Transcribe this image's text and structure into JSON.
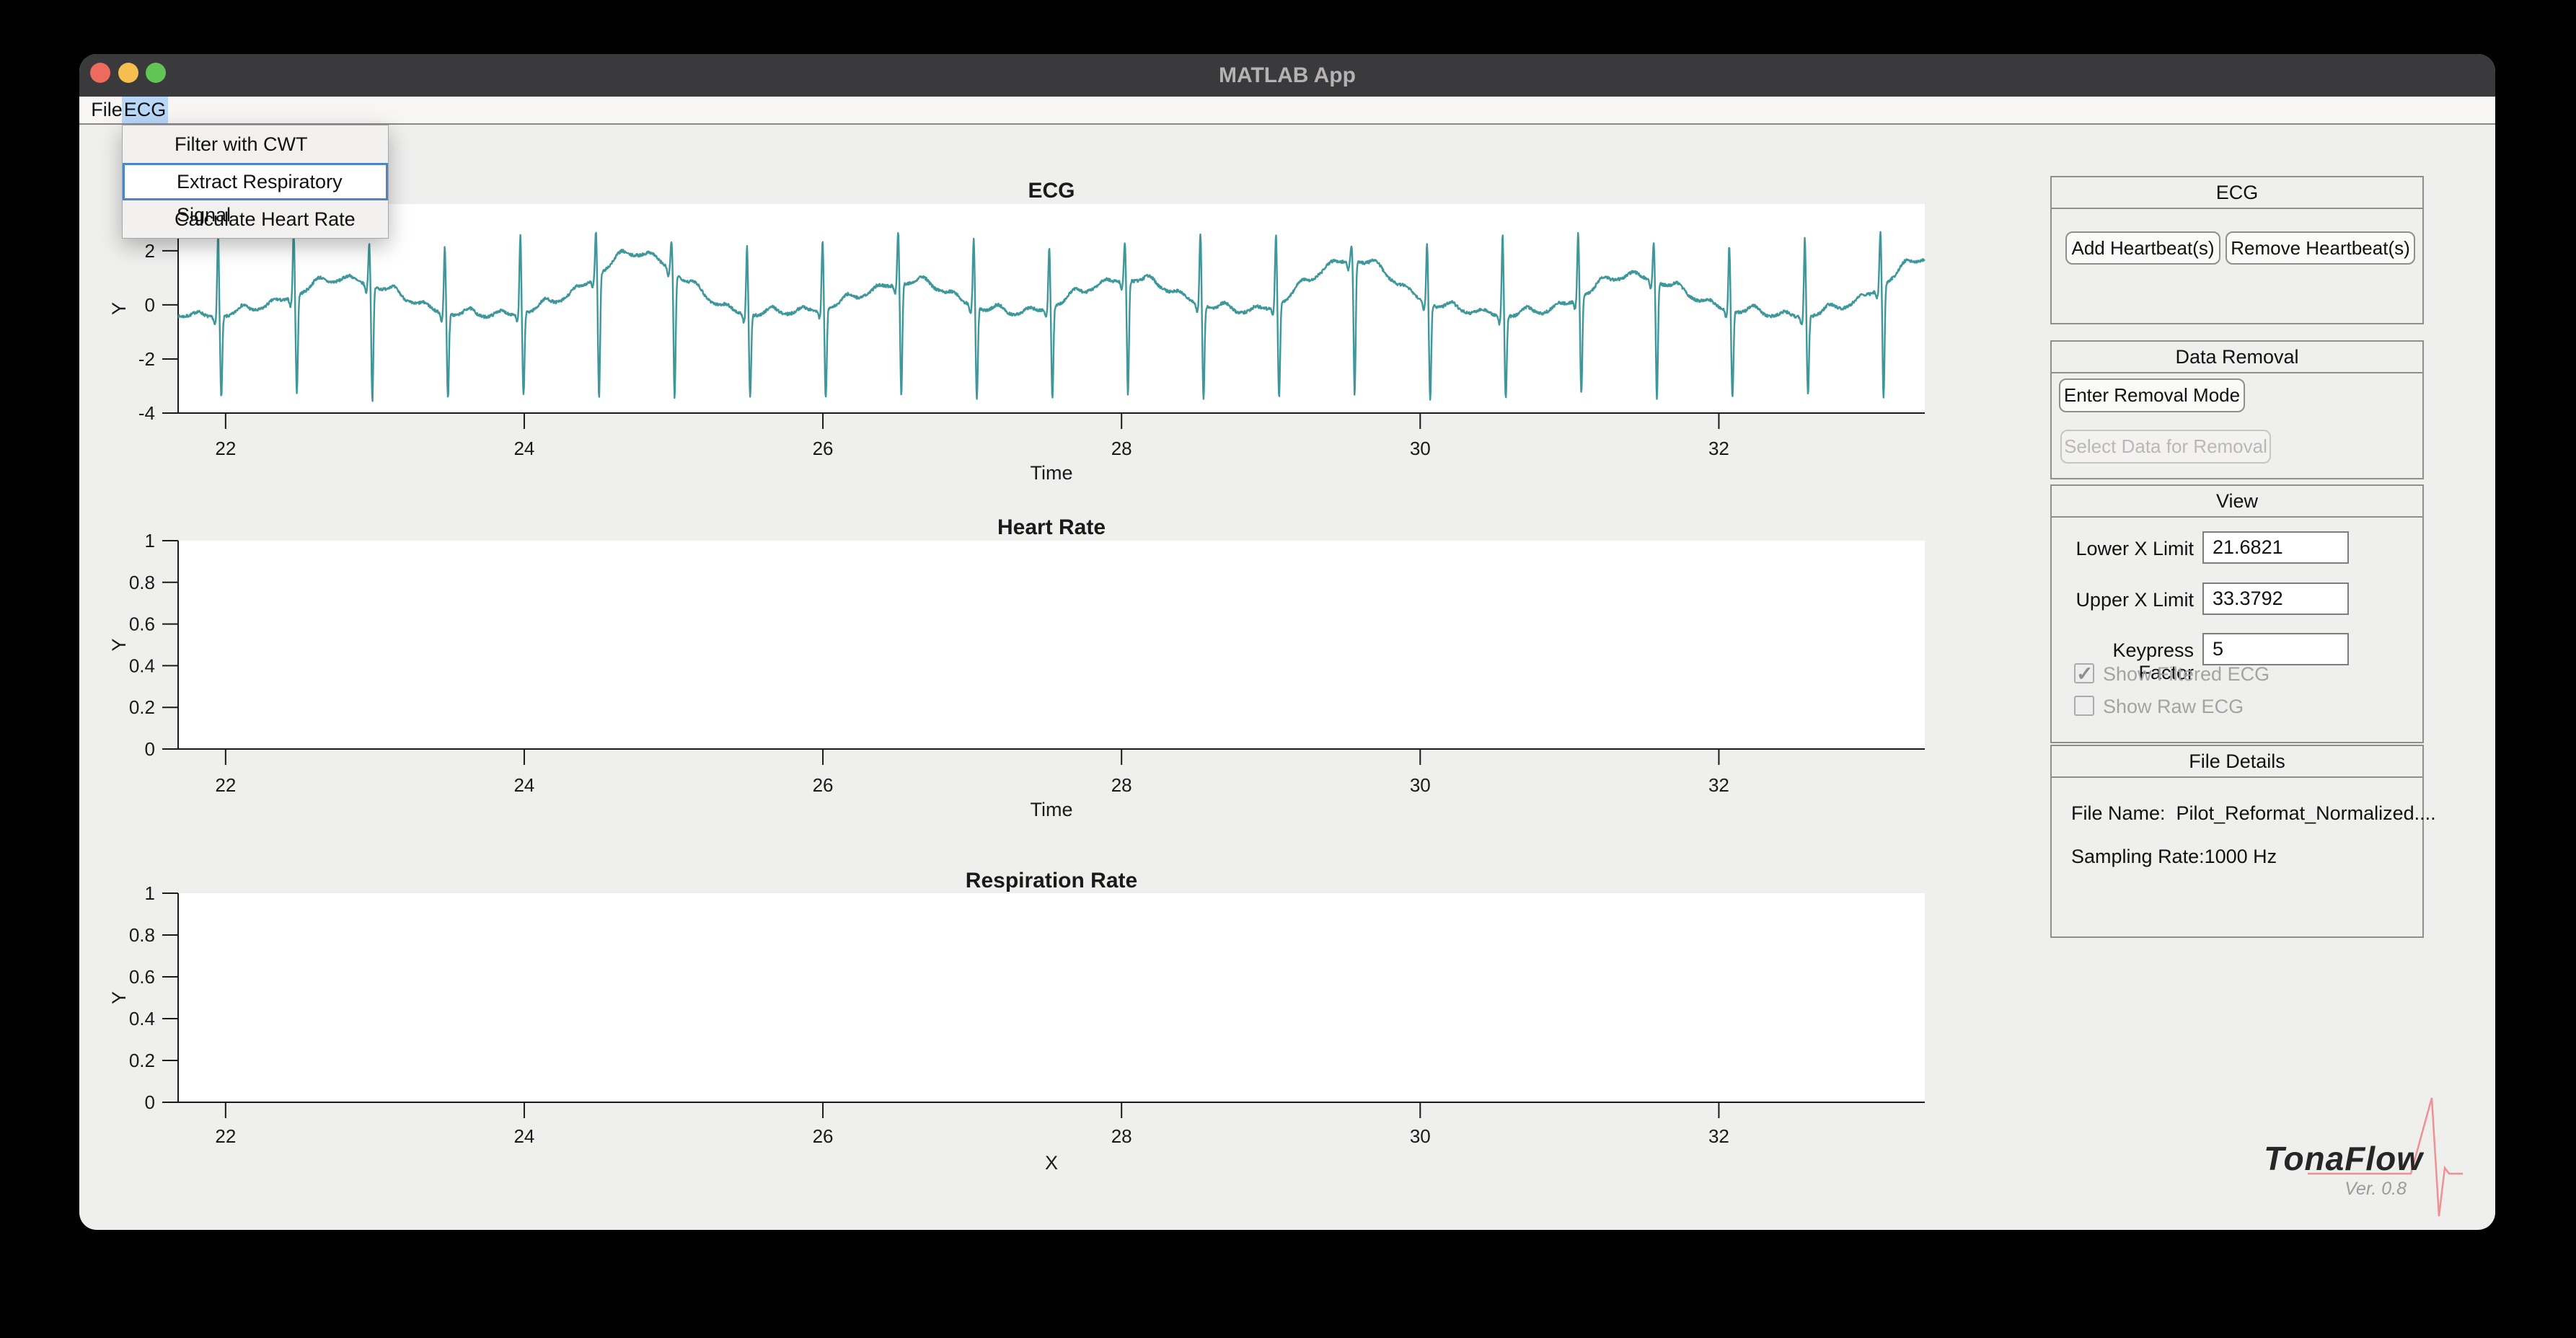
{
  "window": {
    "title": "MATLAB App"
  },
  "traffic_lights": {
    "close": "#ed6a5f",
    "minimize": "#f5bf4f",
    "zoom": "#61c454"
  },
  "menu_bar": {
    "file": "File",
    "ecg": "ECG",
    "highlight_color": "#b9d7f8"
  },
  "ecg_menu": {
    "items": [
      {
        "label": "Filter with CWT",
        "selected": false
      },
      {
        "label": "Extract Respiratory Signal",
        "selected": true
      },
      {
        "label": "Calculate Heart Rate",
        "selected": false
      }
    ]
  },
  "panels": {
    "ecg": {
      "title": "ECG",
      "add_button": "Add Heartbeat(s)",
      "remove_button": "Remove Heartbeat(s)"
    },
    "data_removal": {
      "title": "Data Removal",
      "enter_button": "Enter Removal Mode",
      "select_button": "Select Data for Removal",
      "select_enabled": false
    },
    "view": {
      "title": "View",
      "fields": [
        {
          "label": "Lower X Limit",
          "value": "21.6821"
        },
        {
          "label": "Upper X Limit",
          "value": "33.3792"
        },
        {
          "label": "Keypress Factor",
          "value": "5"
        }
      ],
      "checkboxes": [
        {
          "label": "Show Filtered ECG",
          "checked": true,
          "enabled": false
        },
        {
          "label": "Show Raw ECG",
          "checked": false,
          "enabled": false
        }
      ]
    },
    "file_details": {
      "title": "File Details",
      "file_name_label": "File Name:",
      "file_name_value": "Pilot_Reformat_Normalized....",
      "sampling_label": "Sampling Rate:",
      "sampling_value": "1000 Hz"
    }
  },
  "branding": {
    "name": "TonaFlow",
    "version": "Ver. 0.8",
    "accent": "#f09090"
  },
  "chart_data": [
    {
      "type": "line",
      "title": "ECG",
      "xlabel": "Time",
      "ylabel": "Y",
      "xlim": [
        21.6821,
        33.3792
      ],
      "ylim": [
        -4,
        3.73
      ],
      "xticks": [
        22,
        24,
        26,
        28,
        30,
        32
      ],
      "yticks": [
        -4,
        -2,
        0,
        2
      ],
      "line_color": "#3e979a",
      "waveform": {
        "description": "Filtered ECG trace, QRS spikes about every 0.5 s (~119 BPM) with baseline wander",
        "beats": {
          "start": 21.95,
          "interval": 0.506,
          "count": 23
        },
        "r_peak": 2.45,
        "s_trough": -3.42,
        "p_amp": 0.2,
        "t_amp": 0.32,
        "baseline_level": -0.42,
        "baseline_bumps": [
          [
            22.8,
            1.35
          ],
          [
            24.75,
            2.25
          ],
          [
            26.55,
            1.2
          ],
          [
            28.05,
            1.35
          ],
          [
            29.55,
            2.0
          ],
          [
            31.45,
            1.45
          ],
          [
            33.45,
            2.2
          ]
        ],
        "bump_width": 0.42,
        "noise": 0.1
      }
    },
    {
      "type": "line",
      "title": "Heart Rate",
      "xlabel": "Time",
      "ylabel": "Y",
      "xlim": [
        21.6821,
        33.3792
      ],
      "ylim": [
        0,
        1
      ],
      "xticks": [
        22,
        24,
        26,
        28,
        30,
        32
      ],
      "yticks": [
        0,
        0.2,
        0.4,
        0.6,
        0.8,
        1
      ],
      "series": []
    },
    {
      "type": "line",
      "title": "Respiration Rate",
      "xlabel": "X",
      "ylabel": "Y",
      "xlim": [
        21.6821,
        33.3792
      ],
      "ylim": [
        0,
        1
      ],
      "xticks": [
        22,
        24,
        26,
        28,
        30,
        32
      ],
      "yticks": [
        0,
        0.2,
        0.4,
        0.6,
        0.8,
        1
      ],
      "series": []
    }
  ]
}
